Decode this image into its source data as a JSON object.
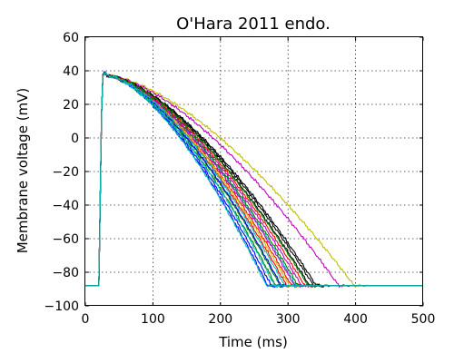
{
  "chart_data": {
    "type": "line",
    "title": "O'Hara 2011 endo.",
    "xlabel": "Time (ms)",
    "ylabel": "Membrane voltage (mV)",
    "xlim": [
      0,
      500
    ],
    "ylim": [
      -100,
      60
    ],
    "xticks": [
      0,
      100,
      200,
      300,
      400,
      500
    ],
    "yticks": [
      -100,
      -80,
      -60,
      -40,
      -20,
      0,
      20,
      40,
      60
    ],
    "xtick_labels": [
      "0",
      "100",
      "200",
      "300",
      "400",
      "500"
    ],
    "ytick_labels": [
      "−100",
      "−80",
      "−60",
      "−40",
      "−20",
      "0",
      "20",
      "40",
      "60"
    ],
    "grid": true,
    "legend": "none",
    "resting_potential": -88,
    "stimulus_time": 20,
    "upstroke_end_time": 25,
    "peak_voltage": 40,
    "series": [
      {
        "color": "#0000ff",
        "apd90": 250
      },
      {
        "color": "#008000",
        "apd90": 262
      },
      {
        "color": "#ff0000",
        "apd90": 278
      },
      {
        "color": "#00bfbf",
        "apd90": 292
      },
      {
        "color": "#bf00bf",
        "apd90": 300
      },
      {
        "color": "#bfbf00",
        "apd90": 378
      },
      {
        "color": "#000000",
        "apd90": 318
      },
      {
        "color": "#0000ff",
        "apd90": 255
      },
      {
        "color": "#008000",
        "apd90": 268
      },
      {
        "color": "#ff0000",
        "apd90": 285
      },
      {
        "color": "#00bfbf",
        "apd90": 260
      },
      {
        "color": "#bf00bf",
        "apd90": 355
      },
      {
        "color": "#bfbf00",
        "apd90": 282
      },
      {
        "color": "#000000",
        "apd90": 322
      },
      {
        "color": "#0000ff",
        "apd90": 270
      },
      {
        "color": "#008000",
        "apd90": 295
      },
      {
        "color": "#ff0000",
        "apd90": 305
      },
      {
        "color": "#00bfbf",
        "apd90": 248
      },
      {
        "color": "#bf00bf",
        "apd90": 290
      },
      {
        "color": "#000000",
        "apd90": 312
      },
      {
        "color": "#008000",
        "apd90": 310
      },
      {
        "color": "#00bfbf",
        "apd90": 275
      }
    ]
  }
}
